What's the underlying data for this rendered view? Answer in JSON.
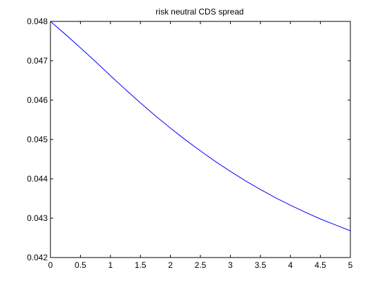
{
  "chart_data": {
    "type": "line",
    "title": "risk neutral CDS spread",
    "xlabel": "",
    "ylabel": "",
    "xlim": [
      0,
      5
    ],
    "ylim": [
      0.042,
      0.048
    ],
    "grid": false,
    "x_ticks": [
      0,
      0.5,
      1,
      1.5,
      2,
      2.5,
      3,
      3.5,
      4,
      4.5,
      5
    ],
    "x_tick_labels": [
      "0",
      "0.5",
      "1",
      "1.5",
      "2",
      "2.5",
      "3",
      "3.5",
      "4",
      "4.5",
      "5"
    ],
    "y_ticks": [
      0.042,
      0.043,
      0.044,
      0.045,
      0.046,
      0.047,
      0.048
    ],
    "y_tick_labels": [
      "0.042",
      "0.043",
      "0.044",
      "0.045",
      "0.046",
      "0.047",
      "0.048"
    ],
    "series": [
      {
        "color": "#0000ff",
        "x": [
          0,
          0.25,
          0.5,
          0.75,
          1,
          1.25,
          1.5,
          1.75,
          2,
          2.25,
          2.5,
          2.75,
          3,
          3.25,
          3.5,
          3.75,
          4,
          4.25,
          4.5,
          4.75,
          5
        ],
        "y": [
          0.048,
          0.04767,
          0.04733,
          0.04698,
          0.04662,
          0.04627,
          0.04593,
          0.0456,
          0.04529,
          0.04499,
          0.04471,
          0.04444,
          0.04419,
          0.04395,
          0.04373,
          0.04352,
          0.04333,
          0.04315,
          0.04298,
          0.04283,
          0.04268
        ]
      }
    ]
  }
}
